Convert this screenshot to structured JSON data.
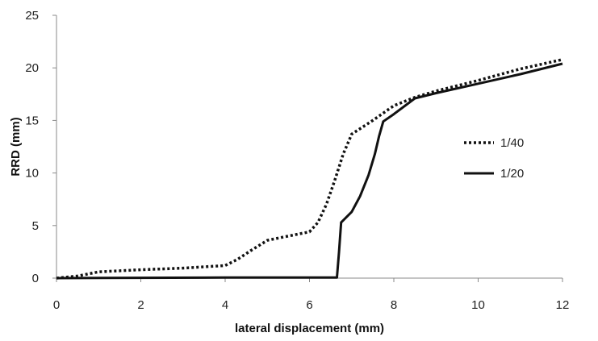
{
  "chart_data": {
    "type": "line",
    "title": "",
    "xlabel": "lateral displacement (mm)",
    "ylabel": "RRD (mm)",
    "xlim": [
      0,
      12
    ],
    "ylim": [
      0,
      25
    ],
    "xticks": [
      0,
      2,
      4,
      6,
      8,
      10,
      12
    ],
    "yticks": [
      0,
      5,
      10,
      15,
      20,
      25
    ],
    "grid": false,
    "legend_position": "right",
    "series": [
      {
        "name": "1/40",
        "style": "dotted",
        "color": "#111111",
        "x": [
          0,
          0.5,
          1.0,
          2.0,
          3.0,
          4.0,
          4.3,
          4.6,
          5.0,
          5.5,
          6.0,
          6.2,
          6.4,
          6.6,
          6.8,
          7.0,
          7.5,
          8.0,
          8.5,
          9.0,
          10.0,
          11.0,
          12.0
        ],
        "y": [
          0,
          0.2,
          0.6,
          0.8,
          0.95,
          1.2,
          1.8,
          2.6,
          3.6,
          4.0,
          4.4,
          5.3,
          7.0,
          9.3,
          11.8,
          13.7,
          15.0,
          16.4,
          17.2,
          17.8,
          18.8,
          19.9,
          20.8
        ]
      },
      {
        "name": "1/20",
        "style": "solid",
        "color": "#111111",
        "x": [
          0,
          4.0,
          6.0,
          6.65,
          6.7,
          6.75,
          7.0,
          7.2,
          7.4,
          7.55,
          7.65,
          7.75,
          8.0,
          8.5,
          9.0,
          10.0,
          11.0,
          12.0
        ],
        "y": [
          0,
          0.05,
          0.05,
          0.05,
          2.5,
          5.3,
          6.3,
          7.8,
          9.8,
          11.8,
          13.5,
          14.9,
          15.6,
          17.1,
          17.6,
          18.5,
          19.4,
          20.4
        ]
      }
    ]
  }
}
